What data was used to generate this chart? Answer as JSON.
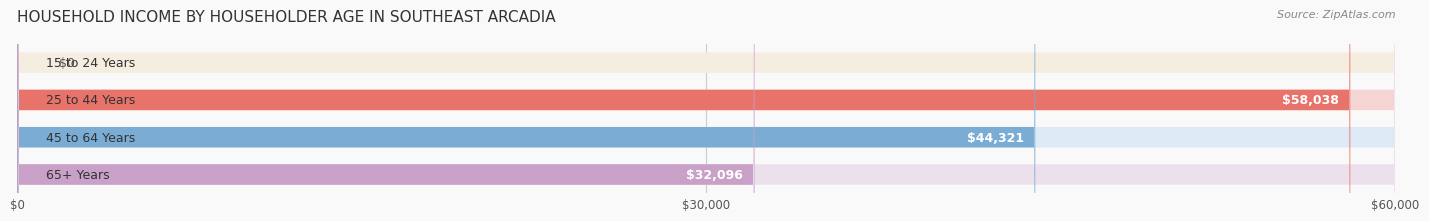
{
  "title": "HOUSEHOLD INCOME BY HOUSEHOLDER AGE IN SOUTHEAST ARCADIA",
  "source": "Source: ZipAtlas.com",
  "categories": [
    "15 to 24 Years",
    "25 to 44 Years",
    "45 to 64 Years",
    "65+ Years"
  ],
  "values": [
    0,
    58038,
    44321,
    32096
  ],
  "bar_colors": [
    "#e8c99a",
    "#e8736a",
    "#7badd4",
    "#c8a0c8"
  ],
  "bg_colors": [
    "#f5ede0",
    "#f5d5d3",
    "#ddeaf5",
    "#ede0ed"
  ],
  "value_labels": [
    "$0",
    "$58,038",
    "$44,321",
    "$32,096"
  ],
  "x_ticks": [
    0,
    30000,
    60000
  ],
  "x_tick_labels": [
    "$0",
    "$30,000",
    "$60,000"
  ],
  "xlim": [
    0,
    60000
  ],
  "title_fontsize": 11,
  "source_fontsize": 8,
  "label_fontsize": 9,
  "value_fontsize": 9,
  "bar_height": 0.55,
  "background_color": "#f9f9f9"
}
